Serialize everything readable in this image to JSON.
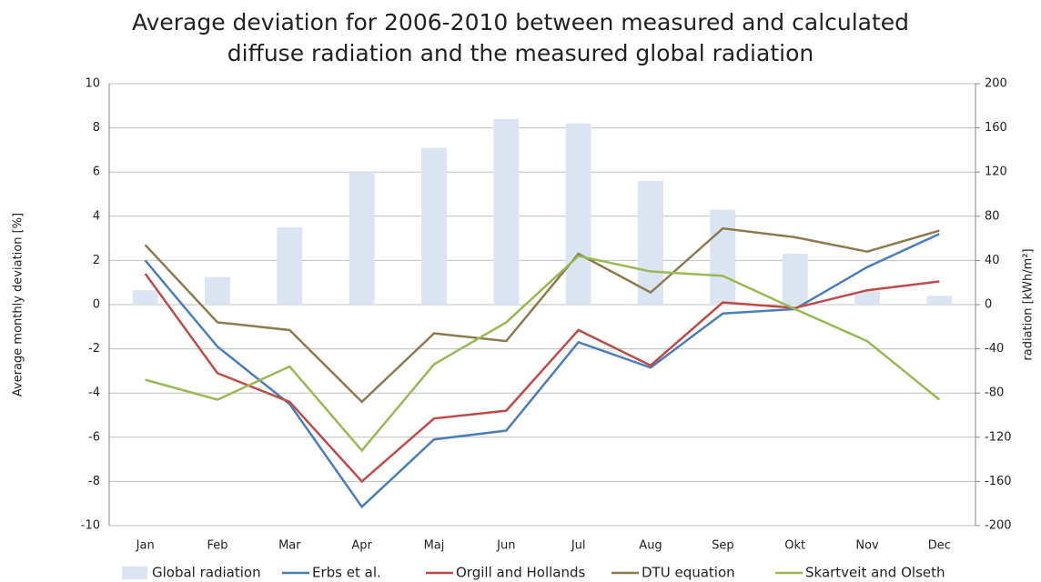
{
  "chart_data": {
    "type": "combo",
    "title": "Average deviation for 2006-2010 between measured and calculated diffuse radiation and the measured global radiation",
    "y_label": "Average monthly deviation [%]",
    "y2_label": "radiation [kWh/m²]",
    "categories": [
      "Jan",
      "Feb",
      "Mar",
      "Apr",
      "Maj",
      "Jun",
      "Jul",
      "Aug",
      "Sep",
      "Okt",
      "Nov",
      "Dec"
    ],
    "ylim": [
      -10,
      10
    ],
    "yticks": [
      -10,
      -8,
      -6,
      -4,
      -2,
      0,
      2,
      4,
      6,
      8,
      10
    ],
    "y2lim": [
      -200,
      200
    ],
    "y2ticks": [
      -200,
      -160,
      -120,
      -80,
      -40,
      0,
      40,
      80,
      120,
      160,
      200
    ],
    "grid": true,
    "legend": "bottom",
    "series": [
      {
        "name": "Global radiation",
        "type": "bar",
        "axis": "y2",
        "color": "#dbe5f1",
        "values": [
          13,
          25,
          70,
          120,
          142,
          168,
          164,
          112,
          86,
          46,
          12,
          8
        ]
      },
      {
        "name": "Erbs et al.",
        "type": "line",
        "color": "#4a7ebb",
        "values": [
          2,
          -1.9,
          -4.5,
          -9.15,
          -6.1,
          -5.7,
          -1.7,
          -2.85,
          -0.4,
          -0.2,
          1.7,
          3.2
        ]
      },
      {
        "name": "Orgill and Hollands",
        "type": "line",
        "color": "#be4b48",
        "values": [
          1.4,
          -3.1,
          -4.4,
          -8,
          -5.15,
          -4.8,
          -1.15,
          -2.75,
          0.1,
          -0.15,
          0.65,
          1.05
        ]
      },
      {
        "name": "DTU equation",
        "type": "line",
        "color": "#8c7b4e",
        "values": [
          2.7,
          -0.8,
          -1.15,
          -4.4,
          -1.3,
          -1.65,
          2.3,
          0.55,
          3.45,
          3.05,
          2.4,
          3.35
        ]
      },
      {
        "name": "Skartveit and Olseth",
        "type": "line",
        "color": "#98b954",
        "values": [
          -3.4,
          -4.3,
          -2.8,
          -6.6,
          -2.7,
          -0.8,
          2.2,
          1.5,
          1.3,
          -0.2,
          -1.65,
          -4.3
        ]
      }
    ]
  }
}
